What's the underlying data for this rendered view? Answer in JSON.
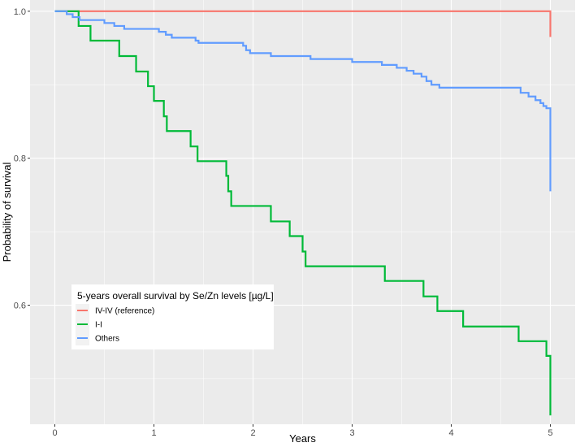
{
  "chart_data": {
    "type": "line",
    "step": true,
    "xlabel": "Years",
    "ylabel": "Probability of survival",
    "xlim": [
      -0.25,
      5.25
    ],
    "ylim": [
      0.438,
      1.0153
    ],
    "x_ticks": [
      0,
      1,
      2,
      3,
      4,
      5
    ],
    "x_tick_labels": [
      "0",
      "1",
      "2",
      "3",
      "4",
      "5"
    ],
    "y_ticks": [
      0.6,
      0.8,
      1.0
    ],
    "y_tick_labels": [
      "0.6",
      "0.8",
      "1.0"
    ],
    "grid": true,
    "legend": {
      "title": "5-years overall survival by Se/Zn levels [µg/L]",
      "placement": "bottom-left"
    },
    "series": [
      {
        "name": "IV-IV (reference)",
        "color": "#F8766D",
        "x": [
          0,
          5,
          5
        ],
        "y": [
          1.0,
          1.0,
          0.965
        ]
      },
      {
        "name": "I-I",
        "color": "#00BA38",
        "x": [
          0,
          0.24,
          0.36,
          0.65,
          0.82,
          0.94,
          1.0,
          1.1,
          1.13,
          1.37,
          1.44,
          1.73,
          1.75,
          1.78,
          2.18,
          2.37,
          2.5,
          2.53,
          3.33,
          3.72,
          3.86,
          4.12,
          4.68,
          4.96,
          5,
          5
        ],
        "y": [
          1.0,
          0.98,
          0.96,
          0.939,
          0.918,
          0.898,
          0.878,
          0.857,
          0.837,
          0.816,
          0.796,
          0.776,
          0.755,
          0.735,
          0.714,
          0.694,
          0.673,
          0.653,
          0.633,
          0.612,
          0.592,
          0.571,
          0.551,
          0.531,
          0.531,
          0.45
        ]
      },
      {
        "name": "Others",
        "color": "#619CFF",
        "x": [
          0,
          0.12,
          0.18,
          0.25,
          0.5,
          0.6,
          0.7,
          1.05,
          1.12,
          1.18,
          1.42,
          1.45,
          1.9,
          1.93,
          1.97,
          2.18,
          2.58,
          3.0,
          3.3,
          3.45,
          3.55,
          3.62,
          3.7,
          3.75,
          3.8,
          3.88,
          4.7,
          4.78,
          4.85,
          4.9,
          4.93,
          4.96,
          5,
          5
        ],
        "y": [
          1.0,
          0.996,
          0.992,
          0.988,
          0.984,
          0.98,
          0.976,
          0.972,
          0.968,
          0.964,
          0.96,
          0.957,
          0.953,
          0.947,
          0.943,
          0.939,
          0.935,
          0.931,
          0.927,
          0.923,
          0.919,
          0.915,
          0.911,
          0.905,
          0.9,
          0.896,
          0.889,
          0.884,
          0.879,
          0.875,
          0.871,
          0.868,
          0.868,
          0.755
        ]
      }
    ]
  }
}
